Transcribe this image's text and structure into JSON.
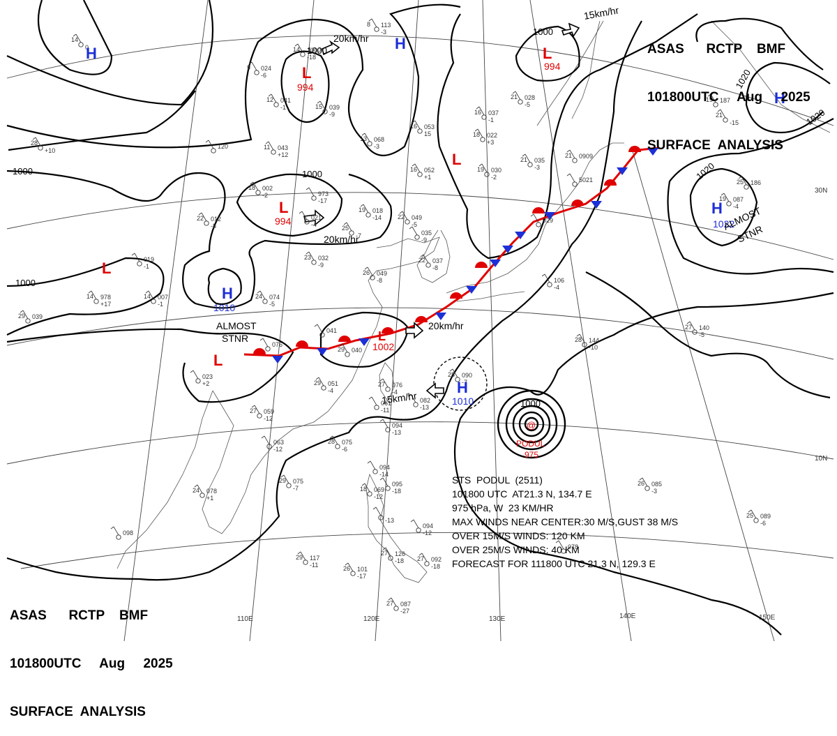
{
  "header": {
    "line1": "ASAS      RCTP    BMF",
    "line2": "101800UTC     Aug     2025",
    "line3": "SURFACE  ANALYSIS"
  },
  "lat_labels": [
    "30N",
    "10N"
  ],
  "lon_labels": [
    "110E",
    "120E",
    "130E",
    "140E",
    "150E"
  ],
  "pressure_centers": [
    {
      "type": "H",
      "value": "",
      "color": "#1d2fd6"
    },
    {
      "type": "H",
      "value": "",
      "color": "#1d2fd6"
    },
    {
      "type": "H",
      "value": "",
      "color": "#1d2fd6"
    },
    {
      "type": "H",
      "value": "1022",
      "color": "#1d2fd6"
    },
    {
      "type": "H",
      "value": "1010",
      "color": "#1d2fd6"
    },
    {
      "type": "H",
      "value": "1010",
      "color": "#1d2fd6"
    },
    {
      "type": "L",
      "value": "994",
      "color": "#e00000"
    },
    {
      "type": "L",
      "value": "994",
      "color": "#e00000"
    },
    {
      "type": "L",
      "value": "994",
      "color": "#e00000"
    },
    {
      "type": "L",
      "value": "",
      "color": "#e00000"
    },
    {
      "type": "L",
      "value": "",
      "color": "#e00000"
    },
    {
      "type": "L",
      "value": "",
      "color": "#e00000"
    },
    {
      "type": "L",
      "value": "1002",
      "color": "#e00000"
    }
  ],
  "isobar_labels": [
    "1000",
    "1000",
    "1000",
    "1000",
    "1000",
    "1000",
    "1020",
    "1020",
    "1020"
  ],
  "motion_labels": [
    "20km/hr",
    "20km/hr",
    "20km/hr",
    "15km/hr",
    "15km/hr"
  ],
  "stationary_labels": [
    "ALMOST",
    "STNR",
    "ALMOST",
    "STNR"
  ],
  "typhoon": {
    "name_label": "PODUL",
    "pressure_label": "975",
    "pressure_label_isobar": "1000",
    "info_lines": [
      "STS  PODUL  (2511)",
      "101800 UTC  AT21.3 N, 134.7 E",
      "975 hPa, W  23 KM/HR",
      "MAX WINDS NEAR CENTER:30 M/S,GUST 38 M/S",
      "OVER 15M/S WINDS: 120 KM",
      "OVER 25M/S WINDS: 40 KM",
      "FORECAST FOR 111800 UTC 21.3 N, 129.3 E"
    ]
  },
  "colors": {
    "high": "#1d2fd6",
    "low": "#e00000",
    "cold_front": "#1d2fd6",
    "warm_front": "#e00000",
    "isobar": "#000000",
    "coast": "#555555",
    "grid": "#444444",
    "station": "#333333"
  },
  "stations": [
    {
      "t": "14",
      "p": "",
      "d": "0"
    },
    {
      "t": "9",
      "p": "024",
      "d": "-6"
    },
    {
      "t": "14",
      "p": "1000",
      "d": "-18"
    },
    {
      "t": "8",
      "p": "113",
      "d": "-3"
    },
    {
      "t": "12",
      "p": "041",
      "d": "-1"
    },
    {
      "t": "15",
      "p": "039",
      "d": "-9"
    },
    {
      "t": "16",
      "p": "053",
      "d": "15"
    },
    {
      "t": "13",
      "p": "068",
      "d": "-3"
    },
    {
      "t": "16",
      "p": "037",
      "d": "-1"
    },
    {
      "t": "18",
      "p": "022",
      "d": "+3"
    },
    {
      "t": "21",
      "p": "028",
      "d": "-5"
    },
    {
      "t": "28",
      "p": "",
      "d": "+10"
    },
    {
      "t": "",
      "p": "120",
      "d": ""
    },
    {
      "t": "11",
      "p": "043",
      "d": "+12"
    },
    {
      "t": "16",
      "p": "052",
      "d": "+1"
    },
    {
      "t": "19",
      "p": "030",
      "d": "-2"
    },
    {
      "t": "21",
      "p": "035",
      "d": "-3"
    },
    {
      "t": "21",
      "p": "",
      "d": "-15"
    },
    {
      "t": "19",
      "p": "087",
      "d": "-4"
    },
    {
      "t": "18",
      "p": "002",
      "d": "-2"
    },
    {
      "t": "",
      "p": "973",
      "d": "-17"
    },
    {
      "t": "19",
      "p": "018",
      "d": "-14"
    },
    {
      "t": "22",
      "p": "049",
      "d": "-5"
    },
    {
      "t": "",
      "p": "021",
      "d": "-4"
    },
    {
      "t": "25",
      "p": "",
      "d": "-7"
    },
    {
      "t": "22",
      "p": "012",
      "d": "-8"
    },
    {
      "t": "",
      "p": "035",
      "d": "-9"
    },
    {
      "t": "23",
      "p": "032",
      "d": "-9"
    },
    {
      "t": "22",
      "p": "037",
      "d": "-8"
    },
    {
      "t": "",
      "p": "019",
      "d": "-1"
    },
    {
      "t": "24",
      "p": "074",
      "d": "-5"
    },
    {
      "t": "26",
      "p": "049",
      "d": "-8"
    },
    {
      "t": "",
      "p": "106",
      "d": "-4"
    },
    {
      "t": "14",
      "p": "978",
      "d": "+17"
    },
    {
      "t": "14",
      "p": "007",
      "d": "-1"
    },
    {
      "t": "29",
      "p": "039",
      "d": ""
    },
    {
      "t": "",
      "p": "076",
      "d": ""
    },
    {
      "t": "",
      "p": "041",
      "d": ""
    },
    {
      "t": "29",
      "p": "040",
      "d": ""
    },
    {
      "t": "28",
      "p": "144",
      "d": "-10"
    },
    {
      "t": "27",
      "p": "140",
      "d": "-5"
    },
    {
      "t": "",
      "p": "023",
      "d": "+2"
    },
    {
      "t": "29",
      "p": "051",
      "d": "-4"
    },
    {
      "t": "27",
      "p": "076",
      "d": "-4"
    },
    {
      "t": "28",
      "p": "090",
      "d": "-7"
    },
    {
      "t": "",
      "p": "082",
      "d": "-13"
    },
    {
      "t": "27",
      "p": "059",
      "d": "-12"
    },
    {
      "t": "",
      "p": "061",
      "d": "-11"
    },
    {
      "t": "",
      "p": "094",
      "d": "-13"
    },
    {
      "t": "",
      "p": "063",
      "d": "-12"
    },
    {
      "t": "28",
      "p": "075",
      "d": "-6"
    },
    {
      "t": "",
      "p": "094",
      "d": "-14"
    },
    {
      "t": "",
      "p": "095",
      "d": "-18"
    },
    {
      "t": "18",
      "p": "069",
      "d": "-12"
    },
    {
      "t": "",
      "p": "",
      "d": "-13"
    },
    {
      "t": "29",
      "p": "075",
      "d": "-7"
    },
    {
      "t": "24",
      "p": "078",
      "d": "+1"
    },
    {
      "t": "",
      "p": "094",
      "d": "-12"
    },
    {
      "t": "",
      "p": "098",
      "d": ""
    },
    {
      "t": "26",
      "p": "085",
      "d": "-3"
    },
    {
      "t": "25",
      "p": "089",
      "d": "-6"
    },
    {
      "t": "29",
      "p": "117",
      "d": "-11"
    },
    {
      "t": "26",
      "p": "101",
      "d": "-17"
    },
    {
      "t": "27",
      "p": "126",
      "d": "-18"
    },
    {
      "t": "27",
      "p": "092",
      "d": "-18"
    },
    {
      "t": "",
      "p": "078",
      "d": ""
    },
    {
      "t": "27",
      "p": "087",
      "d": "-27"
    },
    {
      "t": "19",
      "p": "187",
      "d": ""
    },
    {
      "t": "25",
      "p": "186",
      "d": ""
    },
    {
      "t": "21",
      "p": "0909",
      "d": ""
    },
    {
      "t": "",
      "p": "5021",
      "d": ""
    },
    {
      "t": "",
      "p": "029",
      "d": ""
    }
  ]
}
